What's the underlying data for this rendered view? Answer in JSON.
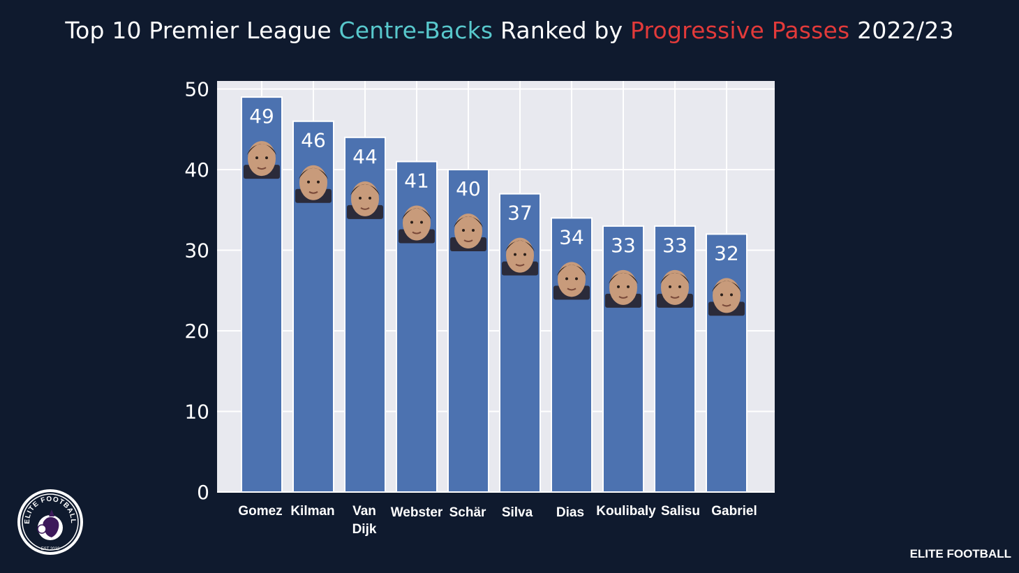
{
  "title": {
    "part1": "Top 10 Premier League ",
    "part2": "Centre-Backs",
    "part3": " Ranked by ",
    "part4": "Progressive Passes",
    "part5": " 2022/23"
  },
  "colors": {
    "background": "#0f1a2e",
    "plot_bg": "#e8e9ef",
    "bar": "#4c72b0",
    "teal": "#58c8cc",
    "red": "#e23a3a",
    "logo_purple": "#3d195b"
  },
  "chart_data": {
    "type": "bar",
    "title": "Top 10 Premier League Centre-Backs Ranked by Progressive Passes 2022/23",
    "categories": [
      "Gomez",
      "Kilman",
      "Van Dijk",
      "Webster",
      "Schär",
      "Silva",
      "Dias",
      "Koulibaly",
      "Salisu",
      "Gabriel"
    ],
    "category_lines": [
      [
        "Gomez"
      ],
      [
        "Kilman"
      ],
      [
        "Van",
        "Dijk"
      ],
      [
        "Webster"
      ],
      [
        "Schär"
      ],
      [
        "Silva"
      ],
      [
        "Dias"
      ],
      [
        "Koulibaly"
      ],
      [
        "Salisu"
      ],
      [
        "Gabriel"
      ]
    ],
    "values": [
      49,
      46,
      44,
      41,
      40,
      37,
      34,
      33,
      33,
      32
    ],
    "xlabel": "",
    "ylabel": "",
    "ylim": [
      0,
      51
    ],
    "yticks": [
      "0",
      "10",
      "20",
      "30",
      "40",
      "50"
    ],
    "grid": true
  },
  "logo": {
    "text": "ELITE FOOTBALL",
    "est": "EST 2022"
  },
  "brand": "ELITE FOOTBALL"
}
